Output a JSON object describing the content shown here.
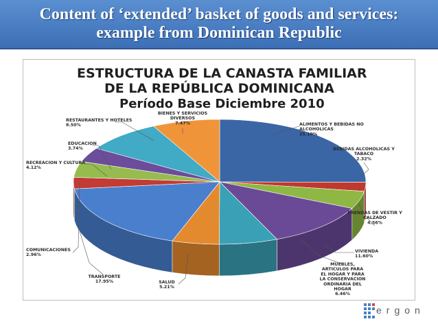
{
  "slide": {
    "title_line1": "Content of ‘extended’ basket of goods and services:",
    "title_line2": "example from Dominican Republic",
    "logo_text": "ergon"
  },
  "chart_data": {
    "type": "pie",
    "title_lines": [
      "ESTRUCTURA DE LA CANASTA FAMILIAR",
      "DE LA REPÚBLICA DOMINICANA",
      "Período Base Diciembre 2010"
    ],
    "slices": [
      {
        "name": "ALIMENTOS Y BEBIDAS NO ALCOHOLICAS",
        "value": 25.1,
        "label": [
          "ALIMENTOS Y BEBIDAS NO",
          "ALCOHOLICAS",
          "25.10%"
        ],
        "color": "#3a66a6"
      },
      {
        "name": "BEBIDAS ALCOHOLICAS Y TABACO",
        "value": 2.32,
        "label": [
          "BEBIDAS ALCOHOLICAS Y",
          "TABACO",
          "2.32%"
        ],
        "color": "#c0392f"
      },
      {
        "name": "PRENDAS DE VESTIR Y CALZADO",
        "value": 4.56,
        "label": [
          "PRENDAS DE VESTIR Y",
          "CALZADO",
          "4.56%"
        ],
        "color": "#8fb744"
      },
      {
        "name": "VIVIENDA",
        "value": 11.6,
        "label": [
          "VIVIENDA",
          "11.60%"
        ],
        "color": "#6a4a96"
      },
      {
        "name": "MUEBLES, ARTICULOS PARA EL HOGAR Y PARA LA CONSERVACION ORDINARIA DEL HOGAR",
        "value": 6.46,
        "label": [
          "MUEBLES,",
          "ARTICULOS PARA",
          "EL HOGAR Y PARA",
          "LA CONSERVACION",
          "ORDINARIA DEL",
          "HOGAR",
          "6.46%"
        ],
        "color": "#3aa0b6"
      },
      {
        "name": "SALUD",
        "value": 5.21,
        "label": [
          "SALUD",
          "5.21%"
        ],
        "color": "#e48a2e"
      },
      {
        "name": "TRANSPORTE",
        "value": 17.95,
        "label": [
          "TRANSPORTE",
          "17.95%"
        ],
        "color": "#4a7fce"
      },
      {
        "name": "COMUNICACIONES",
        "value": 2.96,
        "label": [
          "COMUNICACIONES",
          "2.96%"
        ],
        "color": "#c23b34"
      },
      {
        "name": "RECREACION Y CULTURA",
        "value": 4.12,
        "label": [
          "RECREACION Y CULTURA",
          "4.12%"
        ],
        "color": "#96bb4f"
      },
      {
        "name": "EDUCACION",
        "value": 3.74,
        "label": [
          "EDUCACION",
          "3.74%"
        ],
        "color": "#6b4d9b"
      },
      {
        "name": "RESTAURANTES Y HOTELES",
        "value": 8.5,
        "label": [
          "RESTAURANTES Y HOTELES",
          "8.50%"
        ],
        "color": "#41aac4"
      },
      {
        "name": "BIENES Y SERVICIOS DIVERSOS",
        "value": 7.47,
        "label": [
          "BIENES Y SERVICIOS",
          "DIVERSOS",
          "7.47%"
        ],
        "color": "#f0943a"
      }
    ]
  }
}
